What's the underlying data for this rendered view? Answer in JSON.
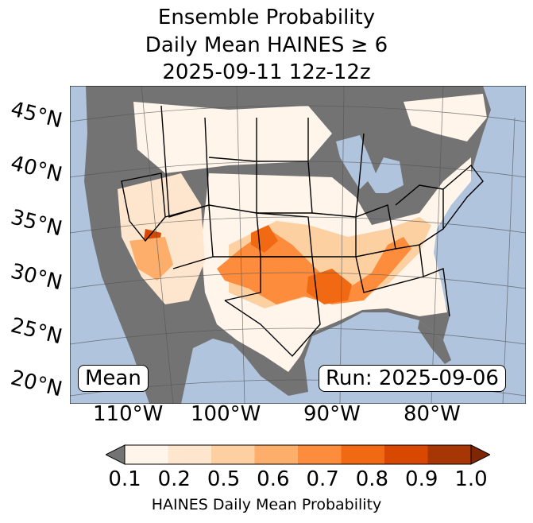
{
  "title": {
    "line1": "Ensemble Probability",
    "line2": "Daily Mean HAINES ≥ 6",
    "line3": "2025-09-11 12z-12z"
  },
  "map": {
    "lat_labels": [
      "45°N",
      "40°N",
      "35°N",
      "30°N",
      "25°N",
      "20°N"
    ],
    "lon_labels": [
      "110°W",
      "100°W",
      "90°W",
      "80°W"
    ],
    "mean_label": "Mean",
    "run_label": "Run: 2025-09-06",
    "colors": {
      "water": "#b0c4de",
      "below_threshold": "#737373",
      "land": "#ffffff"
    }
  },
  "colorbar": {
    "label": "HAINES Daily Mean Probability",
    "ticks": [
      "0.1",
      "0.2",
      "0.5",
      "0.6",
      "0.7",
      "0.8",
      "0.9",
      "1.0"
    ],
    "colors": [
      "#fff5eb",
      "#fee6ce",
      "#fdd0a2",
      "#fdae6b",
      "#fd8d3c",
      "#f16913",
      "#d94801",
      "#a63603"
    ],
    "under_color": "#737373",
    "over_color": "#7f2704"
  }
}
